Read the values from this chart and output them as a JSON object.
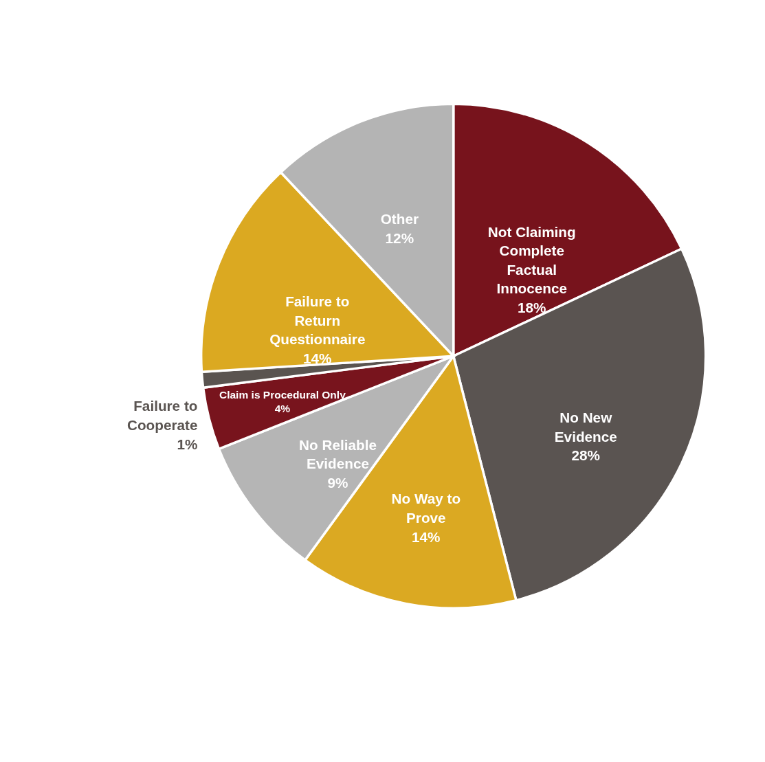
{
  "chart_data": {
    "type": "pie",
    "categories": [
      "Not Claiming Complete Factual Innocence",
      "No New Evidence",
      "No Way to Prove",
      "No Reliable Evidence",
      "Claim is Procedural Only",
      "Failure to Cooperate",
      "Failure to Return Questionnaire",
      "Other"
    ],
    "values": [
      18,
      28,
      14,
      9,
      4,
      1,
      14,
      12
    ],
    "colors": [
      "#77131c",
      "#5a5451",
      "#dba922",
      "#b5b5b5",
      "#78141d",
      "#5a5450",
      "#dba921",
      "#b4b4b4"
    ],
    "value_labels": [
      "18%",
      "28%",
      "14%",
      "9%",
      "4%",
      "1%",
      "14%",
      "12%"
    ]
  }
}
